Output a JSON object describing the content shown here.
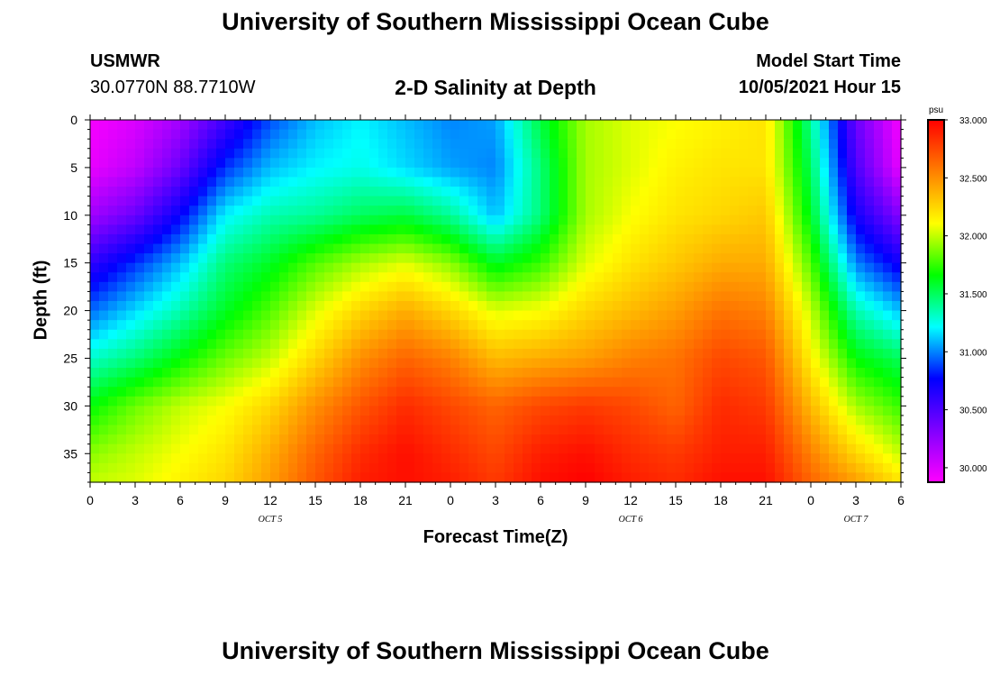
{
  "page": {
    "title": "University of Southern Mississippi Ocean Cube",
    "footer_title": "University of Southern Mississippi Ocean Cube",
    "station": "USMWR",
    "coordinates": "30.0770N  88.7710W",
    "subtitle": "2-D Salinity at Depth",
    "model_start_label": "Model Start Time",
    "model_start_value": "10/05/2021 Hour 15"
  },
  "chart_data": {
    "type": "heatmap",
    "title": "2-D Salinity at Depth",
    "xlabel": "Forecast Time(Z)",
    "ylabel": "Depth (ft)",
    "x_range_hours": [
      0,
      54
    ],
    "x_tick_labels": [
      "0",
      "3",
      "6",
      "9",
      "12",
      "15",
      "18",
      "21",
      "0",
      "3",
      "6",
      "9",
      "12",
      "15",
      "18",
      "21",
      "0",
      "3",
      "6"
    ],
    "day_labels": [
      {
        "label": "OCT 5",
        "hour": 12
      },
      {
        "label": "OCT 6",
        "hour": 36
      },
      {
        "label": "OCT 7",
        "hour": 51
      }
    ],
    "y_range_ft": [
      0,
      38
    ],
    "y_ticks": [
      0,
      5,
      10,
      15,
      20,
      25,
      30,
      35
    ],
    "colorbar": {
      "unit": "psu",
      "min": 29.875,
      "max": 33.0,
      "tick_values": [
        30.0,
        30.5,
        31.0,
        31.5,
        32.0,
        32.5,
        33.0
      ],
      "tick_labels": [
        "30.000",
        "30.500",
        "31.000",
        "31.500",
        "32.000",
        "32.500",
        "33.000"
      ],
      "colors": [
        "#ff00ff",
        "#8000ff",
        "#0000ff",
        "#00ffff",
        "#00ff00",
        "#ffff00",
        "#ff8000",
        "#ff0000"
      ]
    },
    "grid": {
      "hours": [
        0,
        3,
        6,
        9,
        12,
        15,
        18,
        21,
        24,
        27,
        30,
        33,
        36,
        39,
        42,
        45,
        48,
        51,
        54
      ]
    },
    "salinity_grid": {
      "hours": [
        0,
        3,
        6,
        9,
        12,
        15,
        18,
        21,
        24,
        27,
        30,
        33,
        36,
        39,
        42,
        45,
        48,
        51,
        54
      ],
      "depths_ft": [
        0,
        5,
        10,
        15,
        20,
        25,
        30,
        35,
        38
      ],
      "values_psu": [
        [
          29.9,
          30.0,
          30.2,
          30.55,
          30.9,
          31.1,
          31.2,
          31.1,
          31.0,
          31.05,
          31.55,
          31.95,
          32.05,
          32.1,
          32.15,
          32.2,
          31.4,
          30.4,
          29.9
        ],
        [
          29.95,
          30.1,
          30.4,
          30.85,
          31.1,
          31.2,
          31.25,
          31.15,
          31.05,
          31.0,
          31.45,
          31.95,
          32.05,
          32.15,
          32.2,
          32.2,
          31.5,
          30.5,
          29.95
        ],
        [
          30.2,
          30.4,
          30.75,
          31.2,
          31.35,
          31.4,
          31.5,
          31.55,
          31.4,
          31.1,
          31.45,
          31.95,
          32.1,
          32.2,
          32.25,
          32.3,
          31.6,
          30.7,
          30.3
        ],
        [
          30.6,
          30.85,
          31.1,
          31.45,
          31.6,
          31.8,
          31.95,
          32.05,
          31.9,
          31.6,
          31.75,
          32.05,
          32.2,
          32.3,
          32.4,
          32.4,
          31.8,
          31.0,
          30.7
        ],
        [
          30.95,
          31.15,
          31.35,
          31.6,
          31.8,
          32.05,
          32.25,
          32.4,
          32.25,
          32.05,
          32.1,
          32.25,
          32.35,
          32.45,
          32.6,
          32.55,
          32.0,
          31.35,
          31.1
        ],
        [
          31.3,
          31.45,
          31.65,
          31.85,
          32.0,
          32.25,
          32.5,
          32.65,
          32.55,
          32.35,
          32.4,
          32.45,
          32.55,
          32.6,
          32.75,
          32.7,
          32.15,
          31.65,
          31.5
        ],
        [
          31.65,
          31.85,
          32.0,
          32.1,
          32.25,
          32.5,
          32.7,
          32.85,
          32.75,
          32.65,
          32.75,
          32.8,
          32.75,
          32.65,
          32.85,
          32.8,
          32.35,
          31.95,
          31.75
        ],
        [
          31.9,
          32.0,
          32.1,
          32.2,
          32.4,
          32.65,
          32.85,
          32.95,
          32.85,
          32.75,
          32.9,
          32.95,
          32.85,
          32.8,
          32.9,
          32.9,
          32.55,
          32.25,
          32.0
        ],
        [
          32.0,
          32.05,
          32.15,
          32.25,
          32.45,
          32.7,
          32.9,
          32.95,
          32.9,
          32.8,
          32.95,
          33.0,
          32.9,
          32.85,
          32.95,
          32.95,
          32.65,
          32.45,
          32.2
        ]
      ]
    }
  }
}
